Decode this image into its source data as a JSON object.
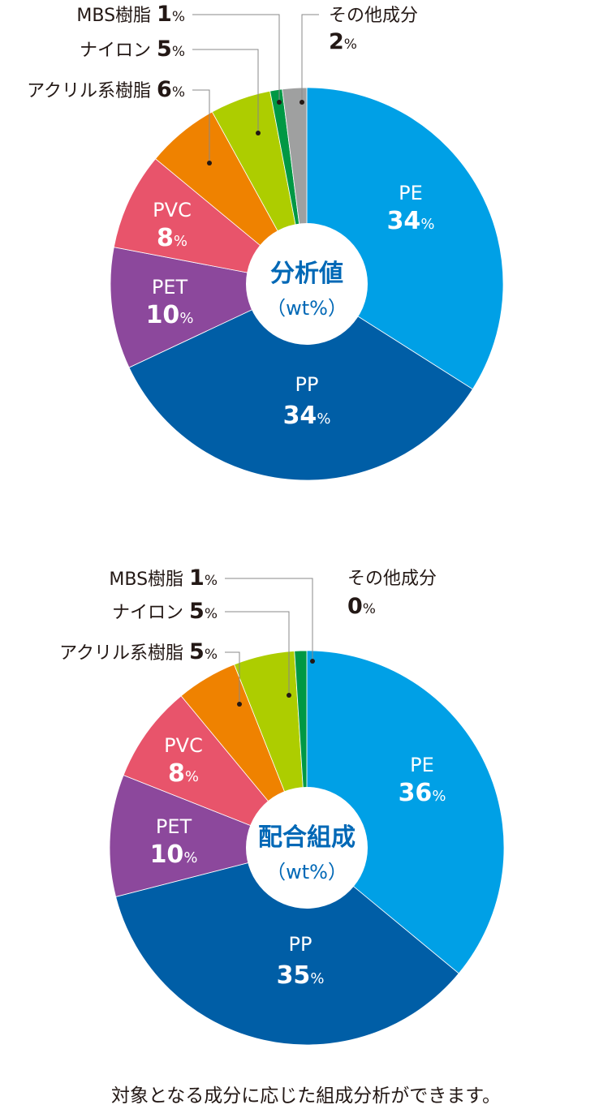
{
  "chart_data": [
    {
      "type": "pie",
      "donut": true,
      "title": "分析値",
      "subtitle": "（wt%）",
      "categories": [
        "PE",
        "PP",
        "PET",
        "PVC",
        "アクリル系樹脂",
        "ナイロン",
        "MBS樹脂",
        "その他成分"
      ],
      "values": [
        34,
        34,
        10,
        8,
        6,
        5,
        1,
        2
      ],
      "unit": "%",
      "colors": [
        "#00a0e6",
        "#005ea6",
        "#8c489c",
        "#e8546b",
        "#ef8200",
        "#adcd00",
        "#009844",
        "#9fa0a0"
      ]
    },
    {
      "type": "pie",
      "donut": true,
      "title": "配合組成",
      "subtitle": "（wt%）",
      "categories": [
        "PE",
        "PP",
        "PET",
        "PVC",
        "アクリル系樹脂",
        "ナイロン",
        "MBS樹脂",
        "その他成分"
      ],
      "values": [
        36,
        35,
        10,
        8,
        5,
        5,
        1,
        0
      ],
      "unit": "%",
      "colors": [
        "#00a0e6",
        "#005ea6",
        "#8c489c",
        "#e8546b",
        "#ef8200",
        "#adcd00",
        "#009844",
        "#9fa0a0"
      ]
    }
  ],
  "caption": "対象となる成分に応じた組成分析ができます。"
}
